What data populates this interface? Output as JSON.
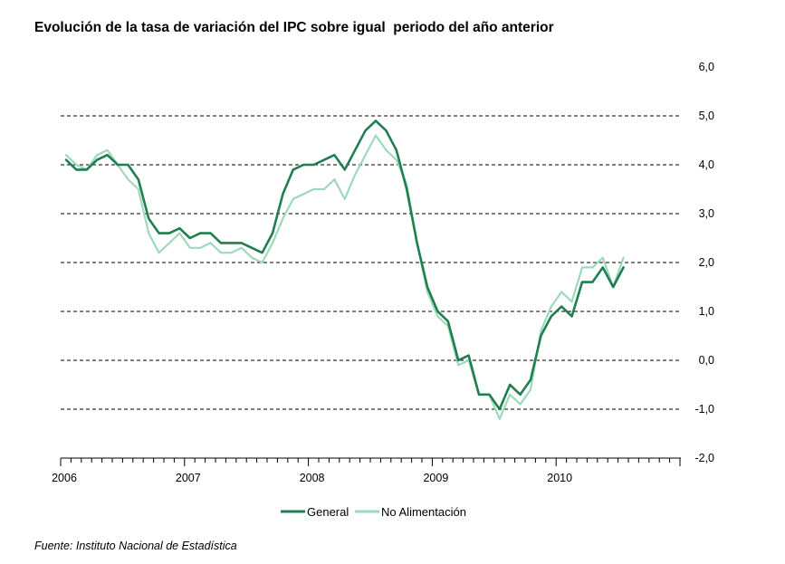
{
  "chart_data": {
    "type": "line",
    "title": "Evolución de la tasa de variación del IPC sobre igual  periodo del año anterior",
    "source": "Fuente: Instituto Nacional de Estadística",
    "xlabel": "",
    "ylabel": "",
    "ylim": [
      -2.0,
      6.0
    ],
    "y_ticks": [
      "6,0",
      "5,0",
      "4,0",
      "3,0",
      "2,0",
      "1,0",
      "0,0",
      "-1,0",
      "-2,0"
    ],
    "x_year_labels": [
      "2006",
      "2007",
      "2008",
      "2009",
      "2010"
    ],
    "grid": "horizontal dashed",
    "legend_position": "bottom",
    "x_start": "2006-01",
    "series": [
      {
        "name": "General",
        "color": "#1f7f4f",
        "values": [
          4.1,
          3.9,
          3.9,
          4.1,
          4.2,
          4.0,
          4.0,
          3.7,
          2.9,
          2.6,
          2.6,
          2.7,
          2.5,
          2.6,
          2.6,
          2.4,
          2.4,
          2.4,
          2.3,
          2.2,
          2.6,
          3.4,
          3.9,
          4.0,
          4.0,
          4.1,
          4.2,
          3.9,
          4.3,
          4.7,
          4.9,
          4.7,
          4.3,
          3.5,
          2.4,
          1.5,
          1.0,
          0.8,
          0.0,
          0.1,
          -0.7,
          -0.7,
          -1.0,
          -0.5,
          -0.7,
          -0.4,
          0.5,
          0.9,
          1.1,
          0.9,
          1.6,
          1.6,
          1.9,
          1.5,
          1.9
        ]
      },
      {
        "name": "No Alimentación",
        "color": "#9ed9bd",
        "values": [
          4.2,
          4.0,
          3.9,
          4.2,
          4.3,
          4.0,
          3.7,
          3.5,
          2.6,
          2.2,
          2.4,
          2.6,
          2.3,
          2.3,
          2.4,
          2.2,
          2.2,
          2.3,
          2.1,
          2.0,
          2.4,
          2.9,
          3.3,
          3.4,
          3.5,
          3.5,
          3.7,
          3.3,
          3.8,
          4.2,
          4.6,
          4.3,
          4.1,
          3.6,
          2.4,
          1.4,
          0.9,
          0.7,
          -0.1,
          0.0,
          -0.7,
          -0.7,
          -1.2,
          -0.7,
          -0.9,
          -0.6,
          0.6,
          1.1,
          1.4,
          1.2,
          1.9,
          1.9,
          2.1,
          1.5,
          2.1
        ]
      }
    ]
  }
}
